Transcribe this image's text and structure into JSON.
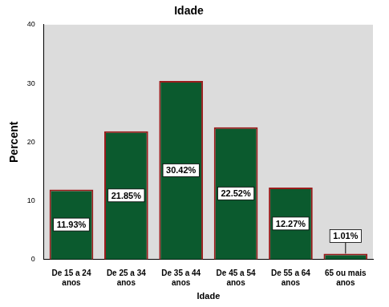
{
  "chart_data": {
    "type": "bar",
    "title": "Idade",
    "x_label": "Idade",
    "y_label": "Percent",
    "categories": [
      "De 15 a 24 anos",
      "De 25 a 34 anos",
      "De 35 a 44 anos",
      "De 45 a 54 anos",
      "De 55 a 64 anos",
      "65 ou mais anos"
    ],
    "values": [
      11.93,
      21.85,
      30.42,
      22.52,
      12.27,
      1.01
    ],
    "value_labels": [
      "11.93%",
      "21.85%",
      "30.42%",
      "22.52%",
      "12.27%",
      "1.01%"
    ],
    "data_labels": true,
    "color": "#0b5a2e",
    "ylim": [
      0,
      40
    ],
    "yticks": [
      0,
      10,
      20,
      30,
      40
    ],
    "grid": false
  }
}
